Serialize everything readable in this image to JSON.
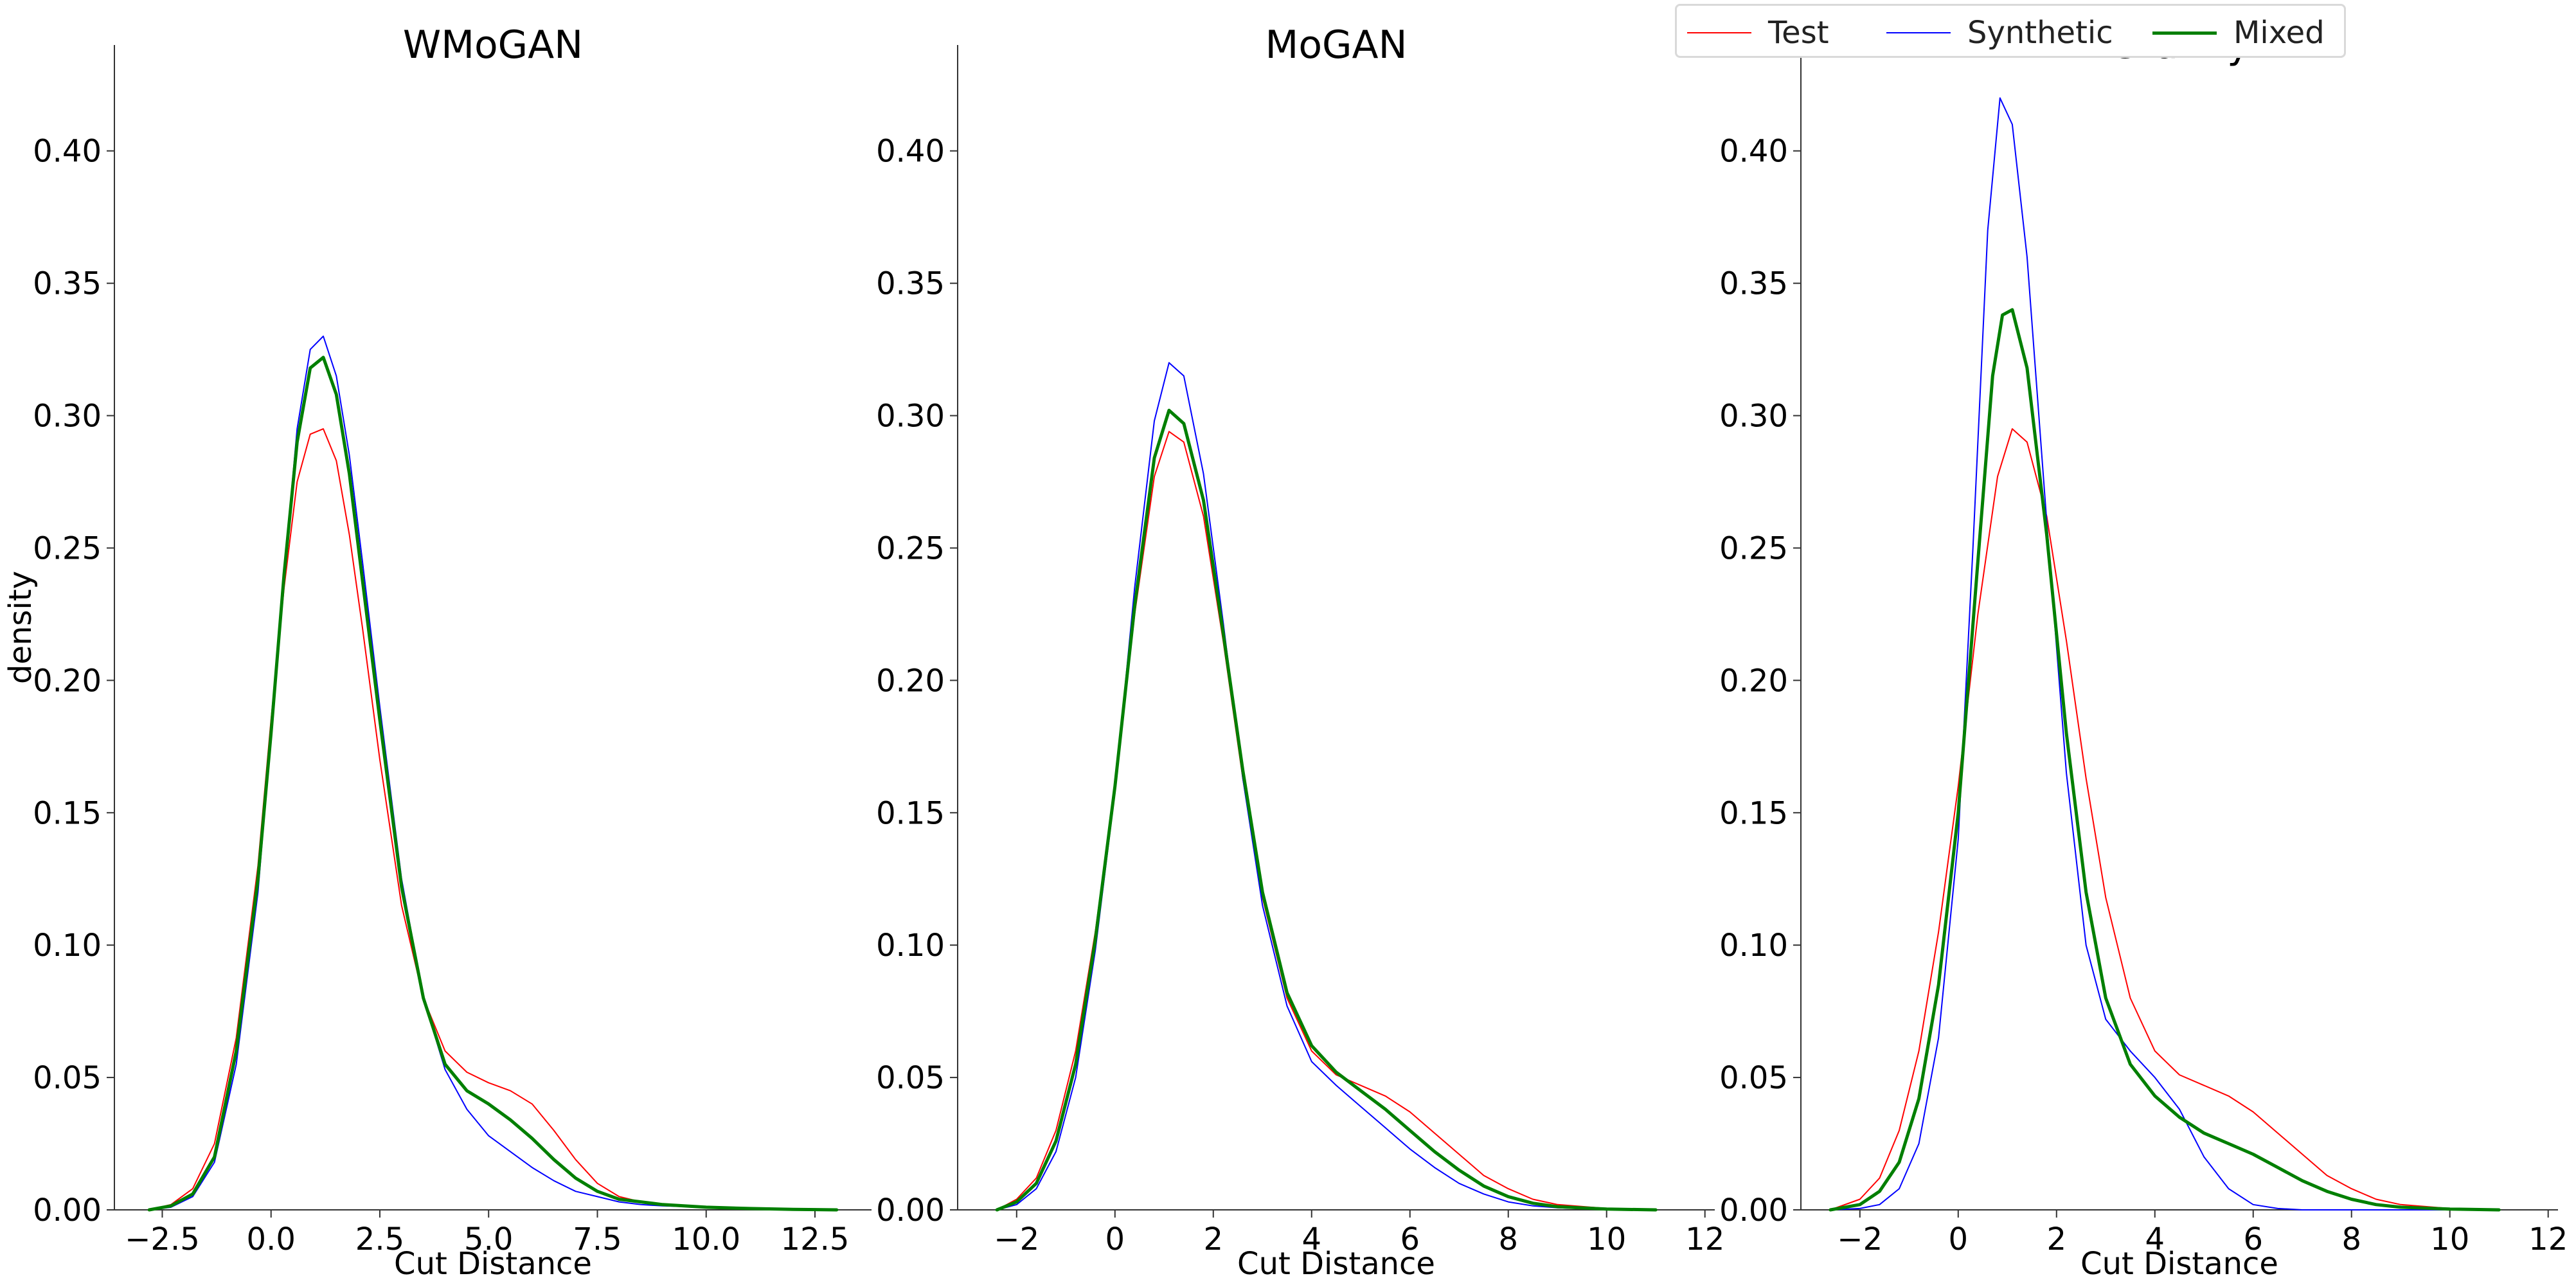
{
  "legend": {
    "position": "top-right",
    "items": [
      {
        "label": "Test",
        "color": "#ff0000"
      },
      {
        "label": "Synthetic",
        "color": "#0000ff"
      },
      {
        "label": "Mixed",
        "color": "#007f00"
      }
    ]
  },
  "chart_data": [
    {
      "type": "line",
      "title": "WMoGAN",
      "xlabel": "Cut Distance",
      "ylabel": "density",
      "xlim": [
        -3.6,
        13.8
      ],
      "ylim": [
        0,
        0.44
      ],
      "xticks": [
        -2.5,
        0.0,
        2.5,
        5.0,
        7.5,
        10.0,
        12.5
      ],
      "xtick_labels": [
        "−2.5",
        "0.0",
        "2.5",
        "5.0",
        "7.5",
        "10.0",
        "12.5"
      ],
      "yticks": [
        0,
        0.05,
        0.1,
        0.15,
        0.2,
        0.25,
        0.3,
        0.35,
        0.4
      ],
      "ytick_labels": [
        "0.00",
        "0.05",
        "0.10",
        "0.15",
        "0.20",
        "0.25",
        "0.30",
        "0.35",
        "0.40"
      ],
      "grid": false,
      "series": [
        {
          "name": "Test",
          "x": [
            -2.8,
            -2.3,
            -1.8,
            -1.3,
            -0.8,
            -0.3,
            0.0,
            0.3,
            0.6,
            0.9,
            1.2,
            1.5,
            1.8,
            2.1,
            2.5,
            3.0,
            3.5,
            4.0,
            4.5,
            5.0,
            5.5,
            6.0,
            6.5,
            7.0,
            7.5,
            8.0,
            8.5,
            9.0,
            10.0,
            11.0,
            12.0,
            13.0
          ],
          "y": [
            0.0,
            0.002,
            0.008,
            0.025,
            0.065,
            0.13,
            0.185,
            0.235,
            0.275,
            0.293,
            0.295,
            0.283,
            0.255,
            0.22,
            0.17,
            0.115,
            0.08,
            0.06,
            0.052,
            0.048,
            0.045,
            0.04,
            0.03,
            0.019,
            0.01,
            0.005,
            0.003,
            0.002,
            0.001,
            0.0005,
            0.0002,
            0.0
          ]
        },
        {
          "name": "Synthetic",
          "x": [
            -2.8,
            -2.3,
            -1.8,
            -1.3,
            -0.8,
            -0.3,
            0.0,
            0.3,
            0.6,
            0.9,
            1.2,
            1.5,
            1.8,
            2.1,
            2.5,
            3.0,
            3.5,
            4.0,
            4.5,
            5.0,
            5.5,
            6.0,
            6.5,
            7.0,
            7.5,
            8.0,
            8.5,
            9.0,
            10.0,
            11.0,
            12.0,
            13.0
          ],
          "y": [
            0.0,
            0.001,
            0.005,
            0.018,
            0.055,
            0.12,
            0.18,
            0.24,
            0.295,
            0.325,
            0.33,
            0.315,
            0.285,
            0.245,
            0.19,
            0.125,
            0.08,
            0.053,
            0.038,
            0.028,
            0.022,
            0.016,
            0.011,
            0.007,
            0.005,
            0.003,
            0.002,
            0.0015,
            0.001,
            0.0005,
            0.0002,
            0.0
          ]
        },
        {
          "name": "Mixed",
          "x": [
            -2.8,
            -2.3,
            -1.8,
            -1.3,
            -0.8,
            -0.3,
            0.0,
            0.3,
            0.6,
            0.9,
            1.2,
            1.5,
            1.8,
            2.1,
            2.5,
            3.0,
            3.5,
            4.0,
            4.5,
            5.0,
            5.5,
            6.0,
            6.5,
            7.0,
            7.5,
            8.0,
            8.5,
            9.0,
            10.0,
            11.0,
            12.0,
            13.0
          ],
          "y": [
            0.0,
            0.0015,
            0.006,
            0.02,
            0.06,
            0.125,
            0.18,
            0.24,
            0.29,
            0.318,
            0.322,
            0.308,
            0.278,
            0.238,
            0.185,
            0.122,
            0.08,
            0.055,
            0.045,
            0.04,
            0.034,
            0.027,
            0.019,
            0.012,
            0.007,
            0.004,
            0.003,
            0.002,
            0.001,
            0.0005,
            0.0002,
            0.0
          ]
        }
      ]
    },
    {
      "type": "line",
      "title": "MoGAN",
      "xlabel": "Cut Distance",
      "ylabel": "",
      "xlim": [
        -3.2,
        12.2
      ],
      "ylim": [
        0,
        0.44
      ],
      "xticks": [
        -2,
        0,
        2,
        4,
        6,
        8,
        10,
        12
      ],
      "xtick_labels": [
        "−2",
        "0",
        "2",
        "4",
        "6",
        "8",
        "10",
        "12"
      ],
      "yticks": [
        0,
        0.05,
        0.1,
        0.15,
        0.2,
        0.25,
        0.3,
        0.35,
        0.4
      ],
      "ytick_labels": [
        "0.00",
        "0.05",
        "0.10",
        "0.15",
        "0.20",
        "0.25",
        "0.30",
        "0.35",
        "0.40"
      ],
      "grid": false,
      "series": [
        {
          "name": "Test",
          "x": [
            -2.4,
            -2.0,
            -1.6,
            -1.2,
            -0.8,
            -0.4,
            0.0,
            0.4,
            0.8,
            1.1,
            1.4,
            1.8,
            2.2,
            2.6,
            3.0,
            3.5,
            4.0,
            4.5,
            5.0,
            5.5,
            6.0,
            6.5,
            7.0,
            7.5,
            8.0,
            8.5,
            9.0,
            10.0,
            11.0
          ],
          "y": [
            0.0,
            0.004,
            0.012,
            0.03,
            0.06,
            0.105,
            0.16,
            0.225,
            0.277,
            0.294,
            0.29,
            0.262,
            0.215,
            0.163,
            0.118,
            0.08,
            0.06,
            0.051,
            0.047,
            0.043,
            0.037,
            0.029,
            0.021,
            0.013,
            0.008,
            0.004,
            0.002,
            0.0005,
            0.0
          ]
        },
        {
          "name": "Synthetic",
          "x": [
            -2.4,
            -2.0,
            -1.6,
            -1.2,
            -0.8,
            -0.4,
            0.0,
            0.4,
            0.8,
            1.1,
            1.4,
            1.8,
            2.2,
            2.6,
            3.0,
            3.5,
            4.0,
            4.5,
            5.0,
            5.5,
            6.0,
            6.5,
            7.0,
            7.5,
            8.0,
            8.5,
            9.0,
            10.0,
            11.0
          ],
          "y": [
            0.0,
            0.002,
            0.008,
            0.022,
            0.05,
            0.098,
            0.158,
            0.235,
            0.298,
            0.32,
            0.315,
            0.278,
            0.222,
            0.163,
            0.115,
            0.077,
            0.056,
            0.047,
            0.039,
            0.031,
            0.023,
            0.016,
            0.01,
            0.006,
            0.003,
            0.0015,
            0.0008,
            0.0002,
            0.0
          ]
        },
        {
          "name": "Mixed",
          "x": [
            -2.4,
            -2.0,
            -1.6,
            -1.2,
            -0.8,
            -0.4,
            0.0,
            0.4,
            0.8,
            1.1,
            1.4,
            1.8,
            2.2,
            2.6,
            3.0,
            3.5,
            4.0,
            4.5,
            5.0,
            5.5,
            6.0,
            6.5,
            7.0,
            7.5,
            8.0,
            8.5,
            9.0,
            10.0,
            11.0
          ],
          "y": [
            0.0,
            0.003,
            0.01,
            0.026,
            0.055,
            0.102,
            0.16,
            0.228,
            0.284,
            0.302,
            0.297,
            0.268,
            0.218,
            0.166,
            0.12,
            0.082,
            0.062,
            0.052,
            0.045,
            0.038,
            0.03,
            0.022,
            0.015,
            0.009,
            0.005,
            0.0025,
            0.0012,
            0.0003,
            0.0
          ]
        }
      ]
    },
    {
      "type": "line",
      "title": "Gravity",
      "xlabel": "Cut Distance",
      "ylabel": "",
      "xlim": [
        -3.2,
        12.2
      ],
      "ylim": [
        0,
        0.44
      ],
      "xticks": [
        -2,
        0,
        2,
        4,
        6,
        8,
        10,
        12
      ],
      "xtick_labels": [
        "−2",
        "0",
        "2",
        "4",
        "6",
        "8",
        "10",
        "12"
      ],
      "yticks": [
        0,
        0.05,
        0.1,
        0.15,
        0.2,
        0.25,
        0.3,
        0.35,
        0.4
      ],
      "ytick_labels": [
        "0.00",
        "0.05",
        "0.10",
        "0.15",
        "0.20",
        "0.25",
        "0.30",
        "0.35",
        "0.40"
      ],
      "grid": false,
      "series": [
        {
          "name": "Test",
          "x": [
            -2.6,
            -2.0,
            -1.6,
            -1.2,
            -0.8,
            -0.4,
            0.0,
            0.4,
            0.8,
            1.1,
            1.4,
            1.8,
            2.2,
            2.6,
            3.0,
            3.5,
            4.0,
            4.5,
            5.0,
            5.5,
            6.0,
            6.5,
            7.0,
            7.5,
            8.0,
            8.5,
            9.0,
            10.0,
            11.0
          ],
          "y": [
            0.0,
            0.004,
            0.012,
            0.03,
            0.06,
            0.105,
            0.16,
            0.225,
            0.277,
            0.295,
            0.29,
            0.262,
            0.215,
            0.163,
            0.118,
            0.08,
            0.06,
            0.051,
            0.047,
            0.043,
            0.037,
            0.029,
            0.021,
            0.013,
            0.008,
            0.004,
            0.002,
            0.0005,
            0.0
          ]
        },
        {
          "name": "Synthetic",
          "x": [
            -2.6,
            -2.0,
            -1.6,
            -1.2,
            -0.8,
            -0.4,
            0.0,
            0.3,
            0.6,
            0.85,
            1.1,
            1.4,
            1.8,
            2.2,
            2.6,
            3.0,
            3.5,
            4.0,
            4.5,
            5.0,
            5.5,
            6.0,
            6.5,
            7.0,
            8.0,
            9.0,
            10.0,
            11.0
          ],
          "y": [
            0.0,
            0.0005,
            0.002,
            0.008,
            0.025,
            0.065,
            0.14,
            0.25,
            0.37,
            0.42,
            0.41,
            0.36,
            0.26,
            0.165,
            0.1,
            0.072,
            0.06,
            0.05,
            0.038,
            0.02,
            0.008,
            0.002,
            0.0005,
            0.0,
            0.0,
            0.0,
            0.0,
            0.0
          ]
        },
        {
          "name": "Mixed",
          "x": [
            -2.6,
            -2.0,
            -1.6,
            -1.2,
            -0.8,
            -0.4,
            0.0,
            0.4,
            0.7,
            0.9,
            1.1,
            1.4,
            1.8,
            2.2,
            2.6,
            3.0,
            3.5,
            4.0,
            4.5,
            5.0,
            5.5,
            6.0,
            6.5,
            7.0,
            7.5,
            8.0,
            8.5,
            9.0,
            10.0,
            11.0
          ],
          "y": [
            0.0,
            0.002,
            0.007,
            0.018,
            0.042,
            0.085,
            0.15,
            0.245,
            0.315,
            0.338,
            0.34,
            0.318,
            0.255,
            0.18,
            0.12,
            0.08,
            0.055,
            0.043,
            0.035,
            0.029,
            0.025,
            0.021,
            0.016,
            0.011,
            0.007,
            0.004,
            0.002,
            0.001,
            0.0003,
            0.0
          ]
        }
      ]
    }
  ]
}
